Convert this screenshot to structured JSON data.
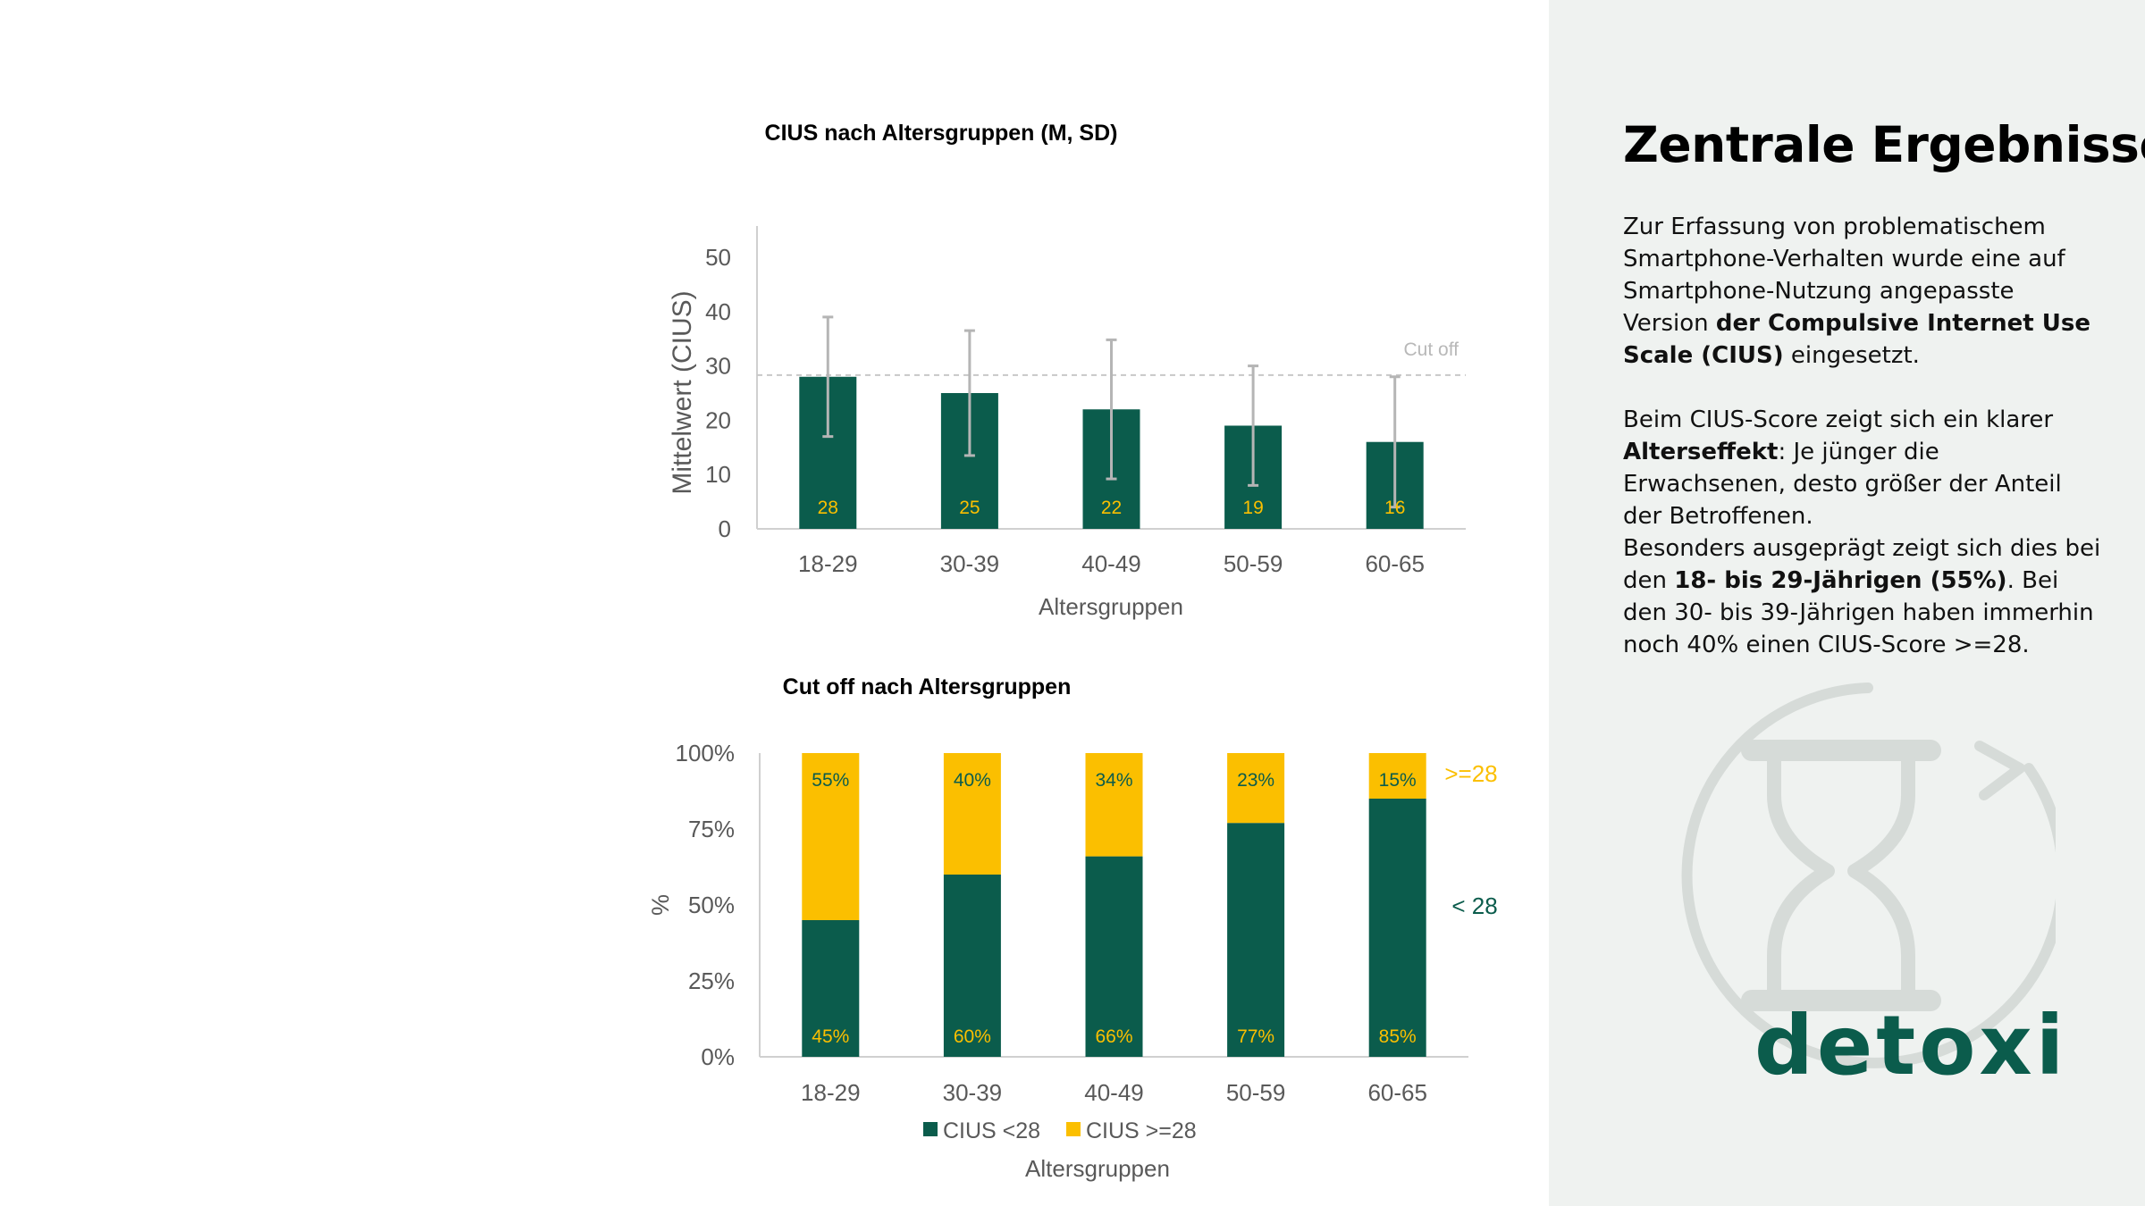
{
  "chart_data": [
    {
      "type": "bar",
      "title": "CIUS nach Altersgruppen  (M, SD)",
      "xlabel": "Altersgruppen",
      "ylabel": "Mittelwert (CIUS)",
      "categories": [
        "18-29",
        "30-39",
        "40-49",
        "50-59",
        "60-65"
      ],
      "series": [
        {
          "values": [
            28,
            25,
            22,
            19,
            16
          ],
          "sd": [
            11,
            11.5,
            12.8,
            11,
            12
          ],
          "color": "#0b5c4c"
        }
      ],
      "data_labels": [
        "28",
        "25",
        "22",
        "19",
        "16"
      ],
      "ylim": [
        0,
        55
      ],
      "yticks": [
        0,
        10,
        20,
        30,
        40,
        50
      ],
      "ytick_labels": [
        "0",
        "10",
        "20",
        "30",
        "40",
        "50"
      ],
      "reference_line": {
        "value": 28.3,
        "label": "Cut off",
        "color": "#c8c8c8",
        "style": "dashed"
      },
      "grid": false,
      "legend": "none"
    },
    {
      "type": "bar",
      "stacked": true,
      "title": "Cut off nach Altersgruppen",
      "xlabel": "Altersgruppen",
      "ylabel": "%",
      "categories": [
        "18-29",
        "30-39",
        "40-49",
        "50-59",
        "60-65"
      ],
      "series": [
        {
          "name": "CIUS <28",
          "values": [
            45,
            60,
            66,
            77,
            85
          ],
          "labels": [
            "45%",
            "60%",
            "66%",
            "77%",
            "85%"
          ],
          "color": "#0b5c4c"
        },
        {
          "name": "CIUS >=28",
          "values": [
            55,
            40,
            34,
            23,
            15
          ],
          "labels": [
            "55%",
            "40%",
            "34%",
            "23%",
            "15%"
          ],
          "color": "#fbbf00"
        }
      ],
      "ylim": [
        0,
        100
      ],
      "yticks": [
        0,
        25,
        50,
        75,
        100
      ],
      "ytick_labels": [
        "0%",
        "25%",
        "50%",
        "75%",
        "100%"
      ],
      "annotations": [
        {
          "text": ">=28",
          "color": "#fbbf00"
        },
        {
          "text": "< 28",
          "color": "#0b5c4c"
        }
      ],
      "grid": false,
      "legend": "bottom"
    }
  ],
  "panel": {
    "title": "Zentrale Ergebnisse",
    "p1": [
      {
        "t": "Zur Erfassung von problematischem Smartphone-Verhalten wurde eine auf Smartphone-Nutzung angepasste Version ",
        "b": false
      },
      {
        "t": "der Compulsive Internet Use Scale (CIUS)",
        "b": true
      },
      {
        "t": " eingesetzt.",
        "b": false
      }
    ],
    "p2": [
      {
        "t": "Beim CIUS-Score zeigt sich ein klarer ",
        "b": false
      },
      {
        "t": "Alterseffekt",
        "b": true
      },
      {
        "t": ": Je jünger die Erwachsenen, desto größer der Anteil der Betroffenen.",
        "b": false
      }
    ],
    "p3": [
      {
        "t": "Besonders ausgeprägt zeigt sich dies bei den ",
        "b": false
      },
      {
        "t": "18- bis 29-Jährigen (55%)",
        "b": true
      },
      {
        "t": ". Bei den 30- bis 39-Jährigen haben immerhin noch 40% einen CIUS-Score >=28.",
        "b": false
      }
    ]
  },
  "logo": {
    "text": "detoxi",
    "icon": "hourglass-cycle-icon",
    "color": "#0b5c4c"
  },
  "colors": {
    "green": "#0b5c4c",
    "yellow": "#fbbf00",
    "panel_bg": "#eff2f0",
    "axis": "#d0d0d0",
    "text": "#595959"
  }
}
